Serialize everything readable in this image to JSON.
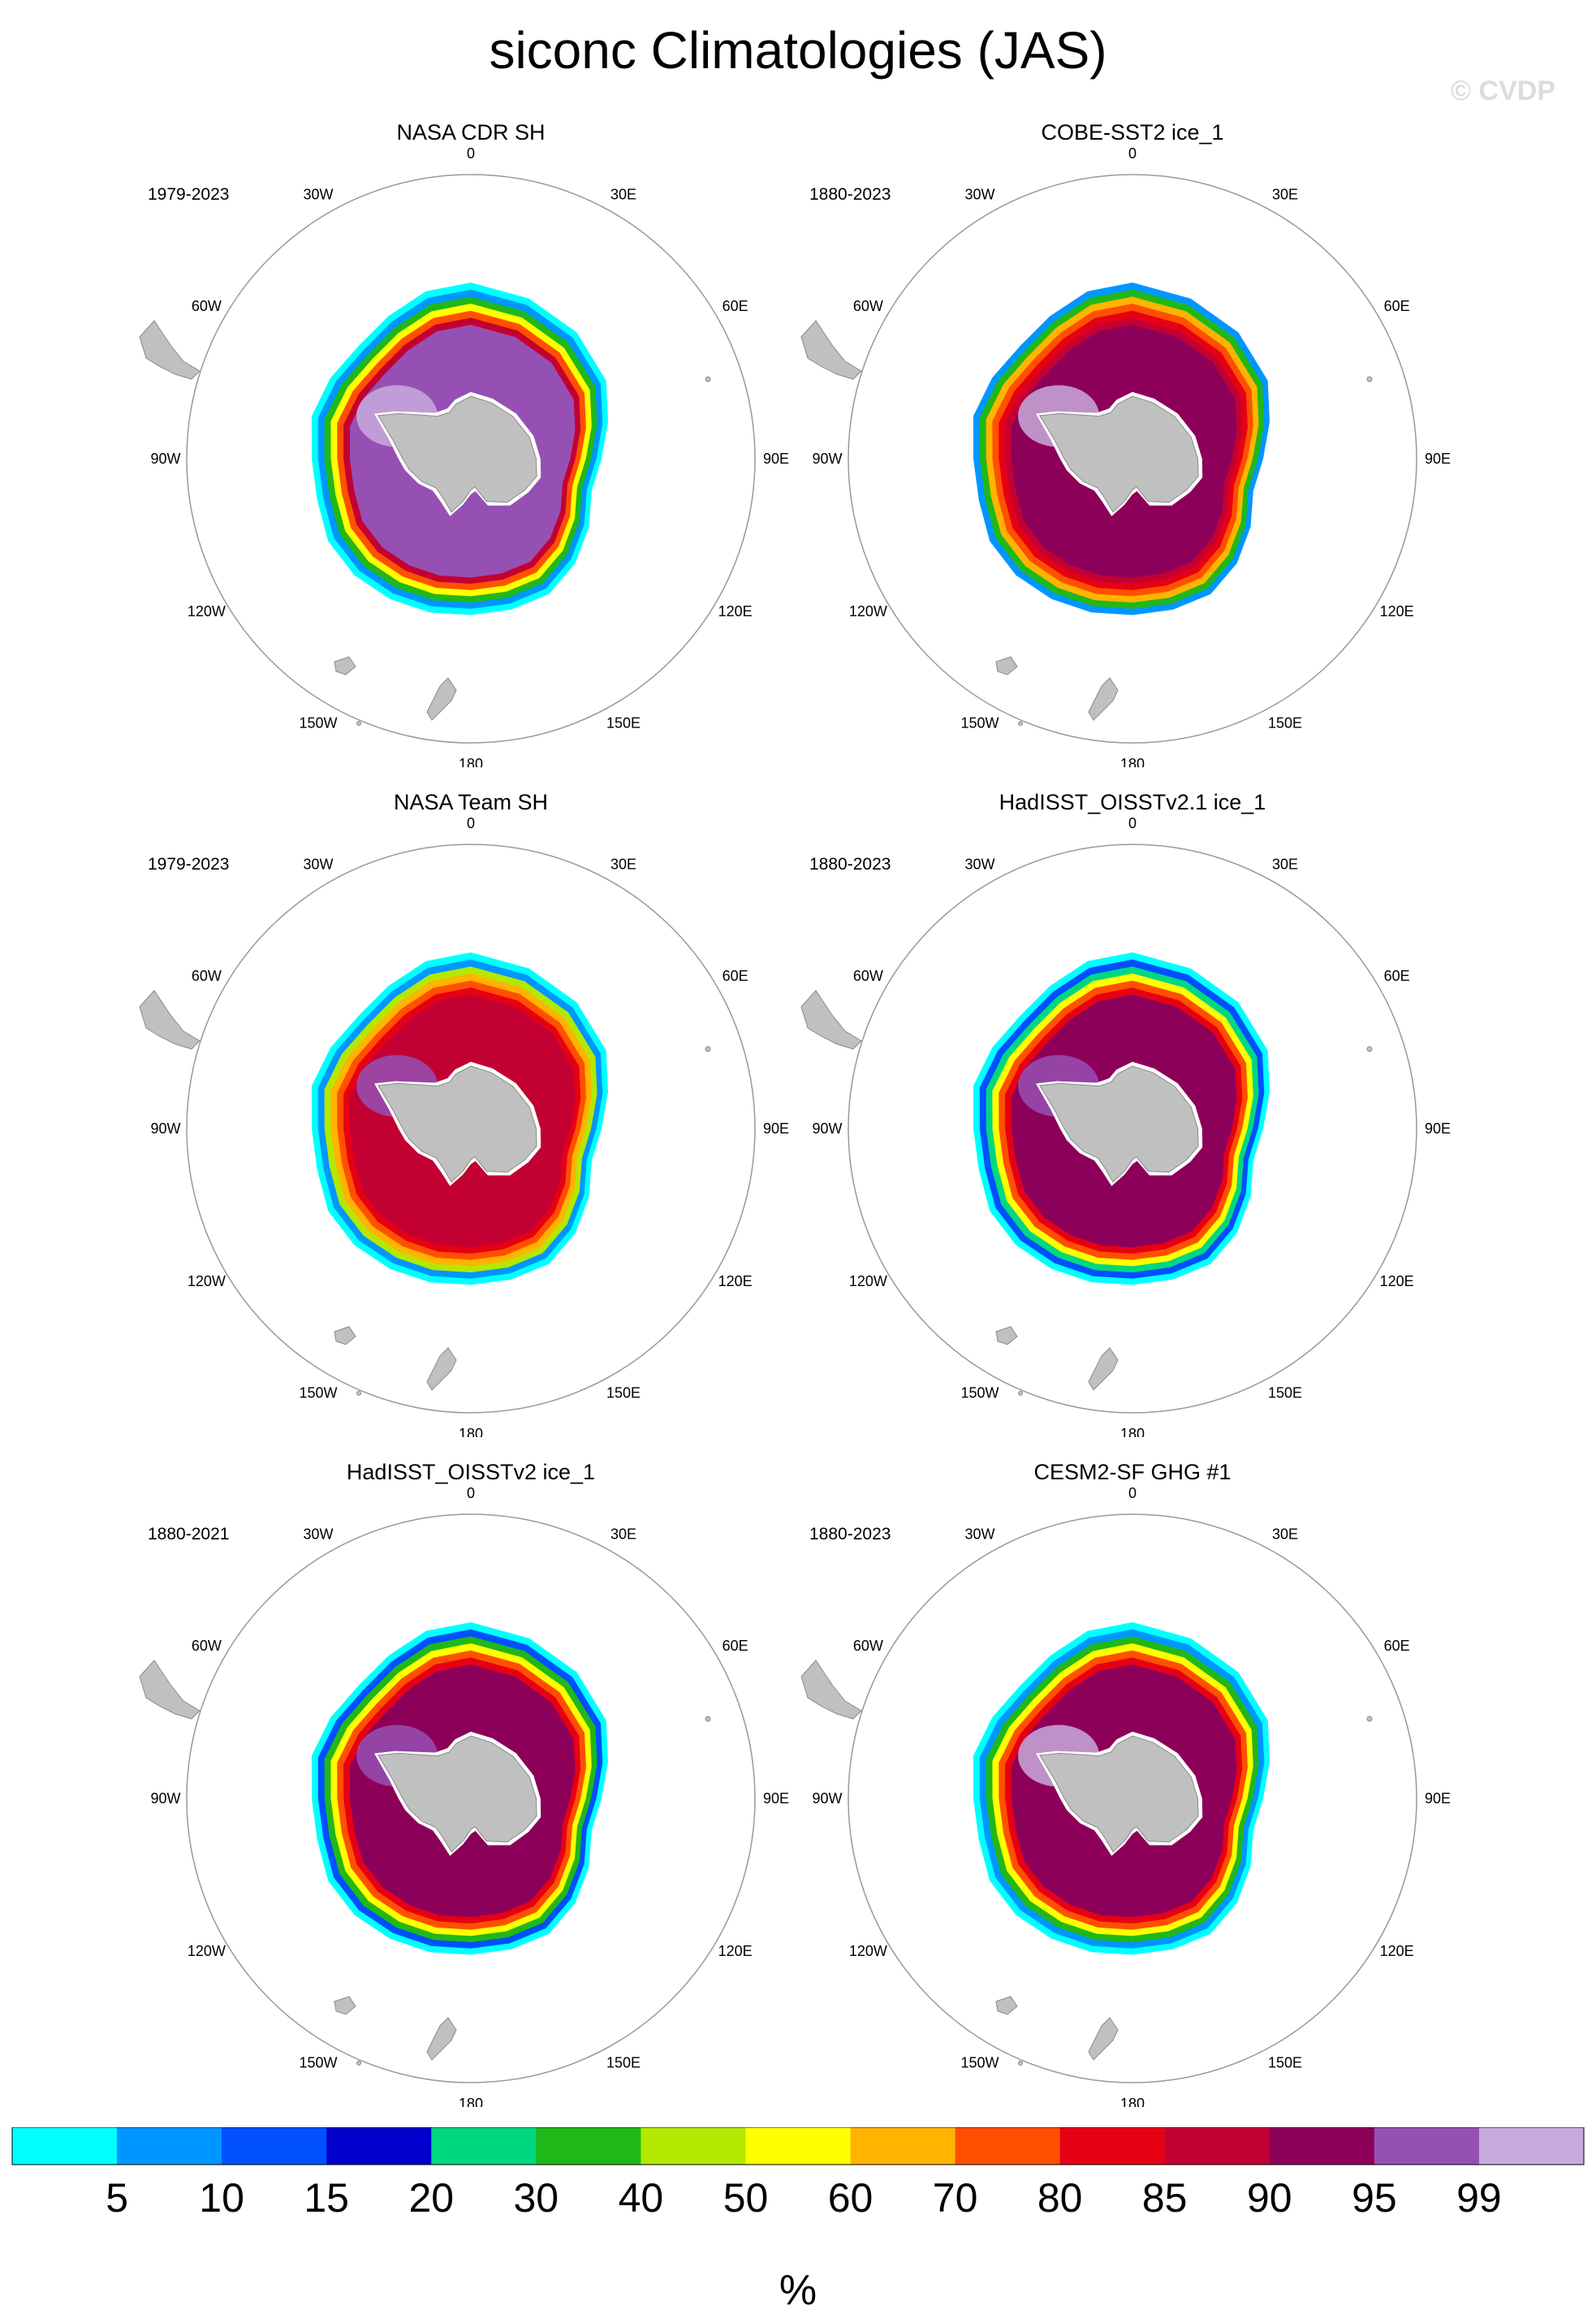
{
  "header": {
    "title": "siconc Climatologies (JAS)",
    "copyright": "© CVDP"
  },
  "colors": {
    "land": "#c0c0c0",
    "coast": "#8a8a8a",
    "frame": "#999999"
  },
  "legend": {
    "unit": "%",
    "labels": [
      "5",
      "10",
      "15",
      "20",
      "30",
      "40",
      "50",
      "60",
      "70",
      "80",
      "85",
      "90",
      "95",
      "99"
    ],
    "colors": [
      "#00ffff",
      "#0096ff",
      "#0050ff",
      "#0000cd",
      "#00d880",
      "#20b818",
      "#b4e800",
      "#ffff00",
      "#ffb400",
      "#ff5000",
      "#e60014",
      "#c30032",
      "#8c005a",
      "#9650b4",
      "#c8aadc"
    ]
  },
  "panels": [
    {
      "id": "nasa-cdr-sh",
      "title": "NASA CDR SH",
      "period": "1979-2023",
      "longitude_labels": [
        "0",
        "30E",
        "60E",
        "90E",
        "120E",
        "150E",
        "180",
        "150W",
        "120W",
        "90W",
        "60W",
        "30W"
      ],
      "ice_profile": {
        "edge": "#00ffff",
        "bands": [
          "#0096ff",
          "#20b818",
          "#ffff00",
          "#ff5000",
          "#c30032"
        ],
        "interior": "#9650b4",
        "accent": "#c8aadc"
      }
    },
    {
      "id": "cobe-sst2",
      "title": "COBE-SST2 ice_1",
      "period": "1880-2023",
      "longitude_labels": [
        "0",
        "30E",
        "60E",
        "90E",
        "120E",
        "150E",
        "180",
        "150W",
        "120W",
        "90W",
        "60W",
        "30W"
      ],
      "ice_profile": {
        "edge": "#0096ff",
        "bands": [
          "#20b818",
          "#ffb400",
          "#ff5000",
          "#e60014",
          "#c30032"
        ],
        "interior": "#8c005a",
        "accent": "#c8aadc"
      }
    },
    {
      "id": "nasa-team-sh",
      "title": "NASA Team SH",
      "period": "1979-2023",
      "longitude_labels": [
        "0",
        "30E",
        "60E",
        "90E",
        "120E",
        "150E",
        "180",
        "150W",
        "120W",
        "90W",
        "60W",
        "30W"
      ],
      "ice_profile": {
        "edge": "#00ffff",
        "bands": [
          "#0096ff",
          "#b4e800",
          "#ffb400",
          "#ff5000",
          "#e60014"
        ],
        "interior": "#c30032",
        "accent": "#9650b4"
      }
    },
    {
      "id": "hadisst-oisstv21",
      "title": "HadISST_OISSTv2.1 ice_1",
      "period": "1880-2023",
      "longitude_labels": [
        "0",
        "30E",
        "60E",
        "90E",
        "120E",
        "150E",
        "180",
        "150W",
        "120W",
        "90W",
        "60W",
        "30W"
      ],
      "ice_profile": {
        "edge": "#00ffff",
        "bands": [
          "#0050ff",
          "#00d880",
          "#ffff00",
          "#ff5000",
          "#e60014"
        ],
        "interior": "#8c005a",
        "accent": "#9650b4"
      }
    },
    {
      "id": "hadisst-oisstv2",
      "title": "HadISST_OISSTv2 ice_1",
      "period": "1880-2021",
      "longitude_labels": [
        "0",
        "30E",
        "60E",
        "90E",
        "120E",
        "150E",
        "180",
        "150W",
        "120W",
        "90W",
        "60W",
        "30W"
      ],
      "ice_profile": {
        "edge": "#00ffff",
        "bands": [
          "#0050ff",
          "#20b818",
          "#ffff00",
          "#ff5000",
          "#e60014"
        ],
        "interior": "#8c005a",
        "accent": "#9650b4"
      }
    },
    {
      "id": "cesm2-sf-ghg",
      "title": "CESM2-SF GHG #1",
      "period": "1880-2023",
      "longitude_labels": [
        "0",
        "30E",
        "60E",
        "90E",
        "120E",
        "150E",
        "180",
        "150W",
        "120W",
        "90W",
        "60W",
        "30W"
      ],
      "ice_profile": {
        "edge": "#00ffff",
        "bands": [
          "#0096ff",
          "#20b818",
          "#ffff00",
          "#ff5000",
          "#e60014"
        ],
        "interior": "#8c005a",
        "accent": "#c8aadc"
      }
    }
  ]
}
